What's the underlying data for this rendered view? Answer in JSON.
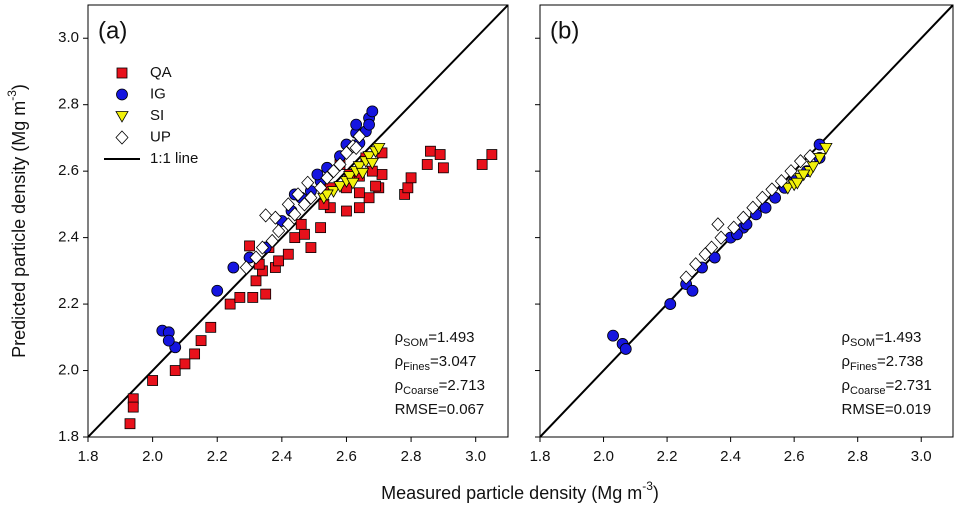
{
  "figure": {
    "x_label": {
      "text": "Measured particle density (Mg m",
      "sup": "-3",
      "end": ")"
    },
    "y_label": {
      "text": "Predicted particle density (Mg m",
      "sup": "-3",
      "end": ")"
    }
  },
  "chart_data": [
    {
      "type": "scatter",
      "label": "(a)",
      "legend": "upper left",
      "xlim": [
        1.8,
        3.1
      ],
      "ylim": [
        1.8,
        3.1
      ],
      "xticks": [
        1.8,
        {
          "value": 2,
          "label": "2.0"
        },
        2.2,
        2.4,
        2.6,
        2.8,
        {
          "value": 3,
          "label": "3.0"
        }
      ],
      "yticks": [
        1.8,
        {
          "value": 2,
          "label": "2.0"
        },
        2.2,
        2.4,
        2.6,
        2.8,
        {
          "value": 3,
          "label": "3.0"
        }
      ],
      "ytick_labels": true,
      "reference_line": {
        "name": "1:1 line",
        "color": "#000000"
      },
      "series": [
        {
          "name": "QA",
          "color": "#e8111b",
          "marker": "square",
          "x": [
            1.93,
            1.94,
            1.94,
            2.0,
            2.07,
            2.1,
            2.13,
            2.15,
            2.18,
            2.24,
            2.27,
            2.31,
            2.32,
            2.34,
            2.35,
            2.38,
            2.39,
            2.44,
            2.47,
            2.49,
            2.52,
            2.55,
            2.6,
            2.64,
            2.67,
            2.71,
            2.7,
            2.78,
            2.79,
            2.8,
            2.85,
            2.86,
            2.89,
            2.9,
            3.02,
            3.05,
            2.69,
            2.68,
            2.64,
            2.61,
            2.58,
            2.55,
            2.53,
            2.46,
            2.42,
            2.36,
            2.33,
            2.3,
            2.6,
            2.64,
            2.71,
            2.66
          ],
          "y": [
            1.84,
            1.915,
            1.89,
            1.97,
            2.0,
            2.02,
            2.05,
            2.09,
            2.13,
            2.2,
            2.22,
            2.22,
            2.27,
            2.3,
            2.23,
            2.31,
            2.33,
            2.4,
            2.41,
            2.37,
            2.43,
            2.49,
            2.48,
            2.49,
            2.52,
            2.59,
            2.55,
            2.53,
            2.55,
            2.58,
            2.62,
            2.66,
            2.65,
            2.61,
            2.62,
            2.65,
            2.555,
            2.6,
            2.585,
            2.59,
            2.62,
            2.55,
            2.5,
            2.44,
            2.35,
            2.37,
            2.32,
            2.375,
            2.55,
            2.535,
            2.655,
            2.64
          ]
        },
        {
          "name": "IG",
          "color": "#1515e0",
          "marker": "circle",
          "x": [
            2.03,
            2.05,
            2.07,
            2.05,
            2.2,
            2.25,
            2.3,
            2.35,
            2.4,
            2.43,
            2.46,
            2.49,
            2.52,
            2.54,
            2.58,
            2.61,
            2.63,
            2.63,
            2.66,
            2.67,
            2.68,
            2.64,
            2.6,
            2.67,
            2.51,
            2.44
          ],
          "y": [
            2.12,
            2.115,
            2.07,
            2.09,
            2.24,
            2.31,
            2.34,
            2.37,
            2.45,
            2.48,
            2.52,
            2.54,
            2.57,
            2.61,
            2.645,
            2.67,
            2.715,
            2.74,
            2.72,
            2.76,
            2.78,
            2.685,
            2.68,
            2.74,
            2.59,
            2.53
          ]
        },
        {
          "name": "SI",
          "color": "#f2f20a",
          "marker": "triangle-down",
          "x": [
            2.53,
            2.56,
            2.58,
            2.6,
            2.61,
            2.63,
            2.64,
            2.66,
            2.67,
            2.69,
            2.7,
            2.68,
            2.54,
            2.62,
            2.65
          ],
          "y": [
            2.52,
            2.54,
            2.555,
            2.57,
            2.585,
            2.6,
            2.615,
            2.63,
            2.645,
            2.66,
            2.67,
            2.625,
            2.53,
            2.565,
            2.595
          ]
        },
        {
          "name": "UP",
          "color": "#ffffff",
          "marker": "diamond",
          "x": [
            2.35,
            2.29,
            2.32,
            2.34,
            2.37,
            2.39,
            2.42,
            2.44,
            2.47,
            2.49,
            2.52,
            2.54,
            2.56,
            2.58,
            2.6,
            2.62,
            2.64,
            2.63,
            2.48,
            2.45,
            2.42,
            2.38
          ],
          "y": [
            2.467,
            2.31,
            2.34,
            2.37,
            2.39,
            2.42,
            2.44,
            2.47,
            2.5,
            2.52,
            2.55,
            2.58,
            2.6,
            2.62,
            2.655,
            2.675,
            2.705,
            2.67,
            2.565,
            2.53,
            2.5,
            2.46
          ]
        }
      ],
      "annotations": [
        {
          "symbol": "ρ",
          "sub": "SOM",
          "text": "=1.493"
        },
        {
          "symbol": "ρ",
          "sub": "Fines",
          "text": "=3.047"
        },
        {
          "symbol": "ρ",
          "sub": "Coarse",
          "text": "=2.713"
        },
        {
          "text": "RMSE=0.067"
        }
      ]
    },
    {
      "type": "scatter",
      "label": "(b)",
      "xlim": [
        1.8,
        3.1
      ],
      "ylim": [
        1.8,
        3.1
      ],
      "xticks": [
        1.8,
        {
          "value": 2,
          "label": "2.0"
        },
        2.2,
        2.4,
        2.6,
        2.8,
        {
          "value": 3,
          "label": "3.0"
        }
      ],
      "yticks": [
        1.8,
        2,
        2.2,
        2.4,
        2.6,
        2.8,
        3
      ],
      "ytick_labels": false,
      "reference_line": {
        "color": "#000000"
      },
      "series": [
        {
          "color": "#1515e0",
          "marker": "circle",
          "x": [
            2.03,
            2.06,
            2.07,
            2.21,
            2.26,
            2.28,
            2.31,
            2.35,
            2.4,
            2.44,
            2.48,
            2.51,
            2.54,
            2.57,
            2.6,
            2.64,
            2.68,
            2.68,
            2.42,
            2.45
          ],
          "y": [
            2.105,
            2.08,
            2.065,
            2.2,
            2.26,
            2.24,
            2.31,
            2.34,
            2.4,
            2.43,
            2.47,
            2.49,
            2.52,
            2.55,
            2.57,
            2.6,
            2.64,
            2.68,
            2.41,
            2.44
          ]
        },
        {
          "color": "#f2f20a",
          "marker": "triangle-down",
          "x": [
            2.58,
            2.6,
            2.62,
            2.65,
            2.66,
            2.68,
            2.7,
            2.63,
            2.61
          ],
          "y": [
            2.55,
            2.56,
            2.58,
            2.6,
            2.615,
            2.64,
            2.67,
            2.59,
            2.565
          ]
        },
        {
          "color": "#ffffff",
          "marker": "diamond",
          "x": [
            2.36,
            2.32,
            2.34,
            2.37,
            2.41,
            2.44,
            2.47,
            2.5,
            2.53,
            2.56,
            2.59,
            2.62,
            2.65,
            2.29,
            2.26
          ],
          "y": [
            2.44,
            2.35,
            2.37,
            2.4,
            2.43,
            2.46,
            2.49,
            2.52,
            2.545,
            2.57,
            2.6,
            2.63,
            2.645,
            2.32,
            2.28
          ]
        }
      ],
      "annotations": [
        {
          "symbol": "ρ",
          "sub": "SOM",
          "text": "=1.493"
        },
        {
          "symbol": "ρ",
          "sub": "Fines",
          "text": "=2.738"
        },
        {
          "symbol": "ρ",
          "sub": "Coarse",
          "text": "=2.731"
        },
        {
          "text": "RMSE=0.019"
        }
      ]
    }
  ]
}
